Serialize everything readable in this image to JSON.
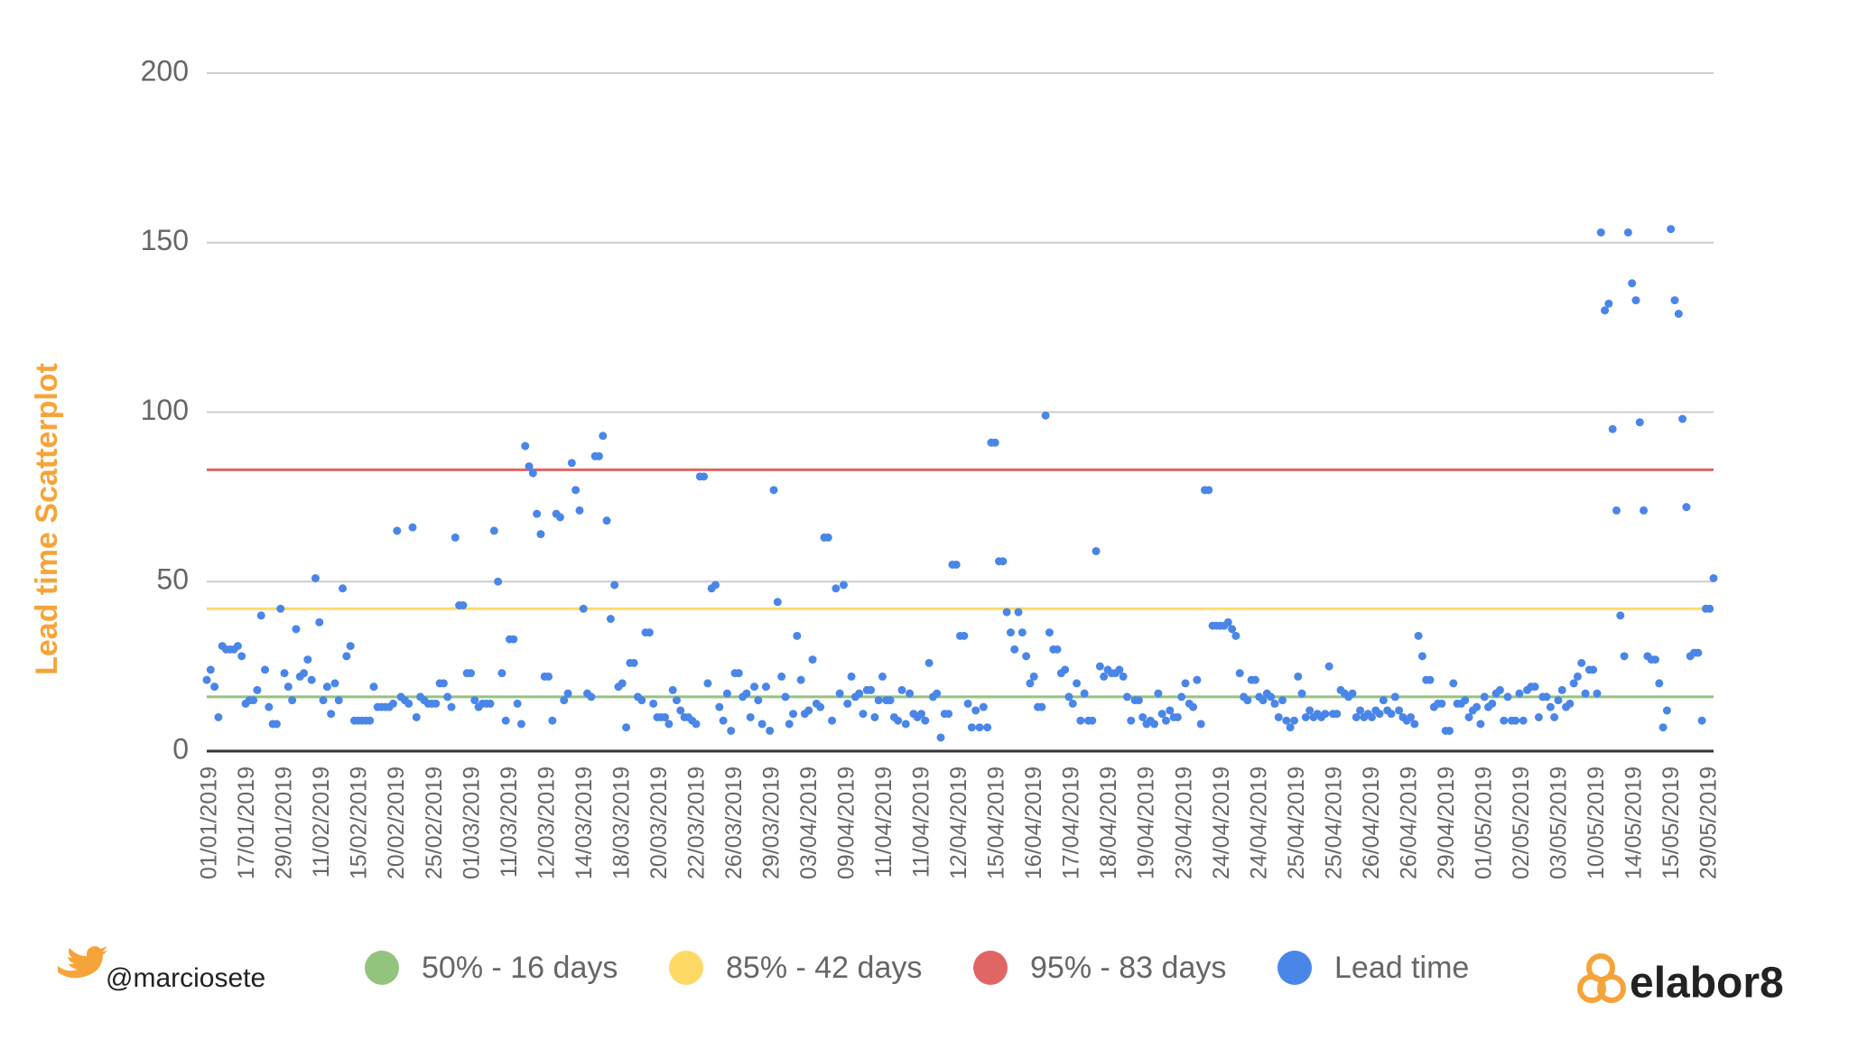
{
  "chart_data": {
    "type": "scatter",
    "y_label": "Lead time Scatterplot",
    "categories": [
      "01/01/2019",
      "17/01/2019",
      "29/01/2019",
      "11/02/2019",
      "15/02/2019",
      "20/02/2019",
      "25/02/2019",
      "01/03/2019",
      "11/03/2019",
      "12/03/2019",
      "14/03/2019",
      "18/03/2019",
      "20/03/2019",
      "22/03/2019",
      "26/03/2019",
      "29/03/2019",
      "03/04/2019",
      "09/04/2019",
      "11/04/2019",
      "11/04/2019",
      "12/04/2019",
      "15/04/2019",
      "16/04/2019",
      "17/04/2019",
      "18/04/2019",
      "19/04/2019",
      "23/04/2019",
      "24/04/2019",
      "24/04/2019",
      "25/04/2019",
      "25/04/2019",
      "26/04/2019",
      "26/04/2019",
      "29/04/2019",
      "01/05/2019",
      "02/05/2019",
      "03/05/2019",
      "10/05/2019",
      "14/05/2019",
      "15/05/2019",
      "29/05/2019"
    ],
    "ylim": [
      0,
      200
    ],
    "yticks": [
      0,
      50,
      100,
      150,
      200
    ],
    "grid": true,
    "reference_lines": [
      {
        "name": "50% - 16 days",
        "value": 16,
        "color": "#93c47d"
      },
      {
        "name": "85% - 42 days",
        "value": 42,
        "color": "#ffd966"
      },
      {
        "name": "95% - 83 days",
        "value": 83,
        "color": "#e06666"
      }
    ],
    "series": [
      {
        "name": "Lead time",
        "color": "#4a86e8",
        "values": [
          21,
          24,
          19,
          10,
          31,
          30,
          30,
          30,
          31,
          28,
          14,
          15,
          15,
          18,
          40,
          24,
          13,
          8,
          8,
          42,
          23,
          19,
          15,
          36,
          22,
          23,
          27,
          21,
          51,
          38,
          15,
          19,
          11,
          20,
          15,
          48,
          28,
          31,
          9,
          9,
          9,
          9,
          9,
          19,
          13,
          13,
          13,
          13,
          14,
          65,
          16,
          15,
          14,
          66,
          10,
          16,
          15,
          14,
          14,
          14,
          20,
          20,
          16,
          13,
          63,
          43,
          43,
          23,
          23,
          15,
          13,
          14,
          14,
          14,
          65,
          50,
          23,
          9,
          33,
          33,
          14,
          8,
          90,
          84,
          82,
          70,
          64,
          22,
          22,
          9,
          70,
          69,
          15,
          17,
          85,
          77,
          71,
          42,
          17,
          16,
          87,
          87,
          93,
          68,
          39,
          49,
          19,
          20,
          7,
          26,
          26,
          16,
          15,
          35,
          35,
          14,
          10,
          10,
          10,
          8,
          18,
          15,
          12,
          10,
          10,
          9,
          8,
          81,
          81,
          20,
          48,
          49,
          13,
          9,
          17,
          6,
          23,
          23,
          16,
          17,
          10,
          19,
          15,
          8,
          19,
          6,
          77,
          44,
          22,
          16,
          8,
          11,
          34,
          21,
          11,
          12,
          27,
          14,
          13,
          63,
          63,
          9,
          48,
          17,
          49,
          14,
          22,
          16,
          17,
          11,
          18,
          18,
          10,
          15,
          22,
          15,
          15,
          10,
          9,
          18,
          8,
          17,
          11,
          10,
          11,
          9,
          26,
          16,
          17,
          4,
          11,
          11,
          55,
          55,
          34,
          34,
          14,
          7,
          12,
          7,
          13,
          7,
          91,
          91,
          56,
          56,
          41,
          35,
          30,
          41,
          35,
          28,
          20,
          22,
          13,
          13,
          99,
          35,
          30,
          30,
          23,
          24,
          16,
          14,
          20,
          9,
          17,
          9,
          9,
          59,
          25,
          22,
          24,
          23,
          23,
          24,
          22,
          16,
          9,
          15,
          15,
          10,
          8,
          9,
          8,
          17,
          11,
          9,
          12,
          10,
          10,
          16,
          20,
          14,
          13,
          21,
          8,
          77,
          77,
          37,
          37,
          37,
          37,
          38,
          36,
          34,
          23,
          16,
          15,
          21,
          21,
          16,
          15,
          17,
          16,
          14,
          10,
          15,
          9,
          7,
          9,
          22,
          17,
          10,
          12,
          10,
          11,
          10,
          11,
          25,
          11,
          11,
          18,
          17,
          16,
          17,
          10,
          12,
          10,
          11,
          10,
          12,
          11,
          15,
          12,
          11,
          16,
          12,
          10,
          9,
          10,
          8,
          34,
          28,
          21,
          21,
          13,
          14,
          14,
          6,
          6,
          20,
          14,
          14,
          15,
          10,
          12,
          13,
          8,
          16,
          13,
          14,
          17,
          18,
          9,
          16,
          9,
          9,
          17,
          9,
          18,
          19,
          19,
          10,
          16,
          16,
          13,
          10,
          15,
          18,
          13,
          14,
          20,
          22,
          26,
          17,
          24,
          24,
          17,
          153,
          130,
          132,
          95,
          71,
          40,
          28,
          153,
          138,
          133,
          97,
          71,
          28,
          27,
          27,
          20,
          7,
          12,
          154,
          133,
          129,
          98,
          72,
          28,
          29,
          29,
          9,
          42,
          42,
          51
        ]
      }
    ]
  },
  "footer": {
    "handle": "@marciosete",
    "brand": "elabor8"
  }
}
